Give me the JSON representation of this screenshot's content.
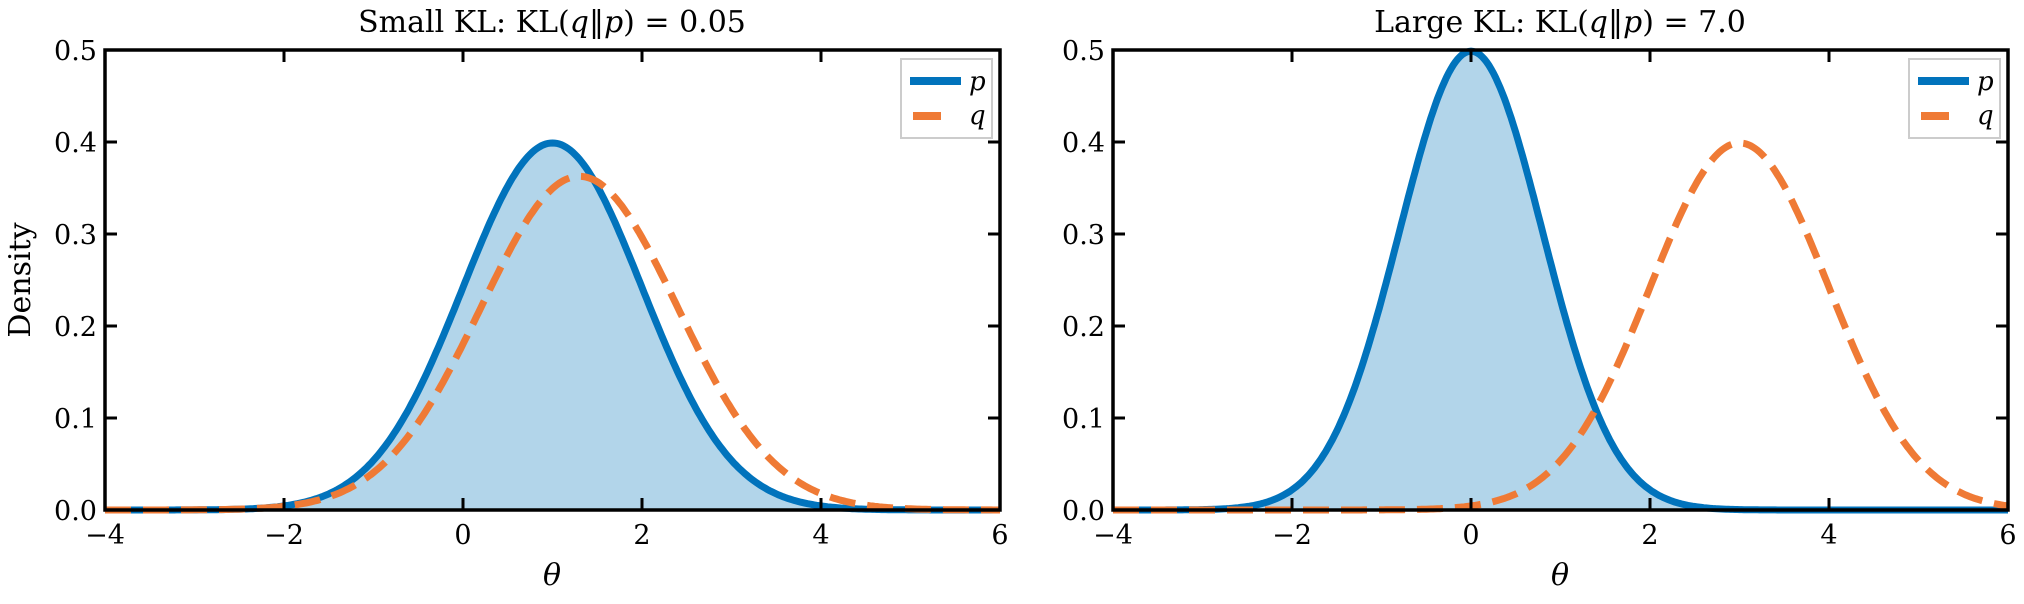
{
  "figure": {
    "ylabel": "Density",
    "colors": {
      "p": "#0173BC",
      "q": "#EF7A35",
      "p_fill": "#B2D5EA",
      "axis": "#000000",
      "legend_border": "#CCCCCC"
    }
  },
  "chart_data": [
    {
      "type": "line",
      "title": "Small KL: KL(q‖p) = 0.05",
      "title_parts": {
        "prefix": "Small KL: KL(",
        "q": "q",
        "sep": "‖",
        "p": "p",
        "suffix": ") = 0.05"
      },
      "xlabel": "θ",
      "ylabel": "Density",
      "xlim": [
        -4,
        6
      ],
      "ylim": [
        0,
        0.5
      ],
      "xticks": [
        -4,
        -2,
        0,
        2,
        4,
        6
      ],
      "xtick_labels": [
        "−4",
        "−2",
        "0",
        "2",
        "4",
        "6"
      ],
      "yticks": [
        0.0,
        0.1,
        0.2,
        0.3,
        0.4,
        0.5
      ],
      "ytick_labels": [
        "0.0",
        "0.1",
        "0.2",
        "0.3",
        "0.4",
        "0.5"
      ],
      "grid": false,
      "legend_position": "upper right",
      "legend": [
        "p",
        "q"
      ],
      "series": [
        {
          "name": "p",
          "distribution": "normal",
          "mean": 1.0,
          "std": 1.0,
          "style": "solid",
          "filled": true,
          "peak": 0.399
        },
        {
          "name": "q",
          "distribution": "normal",
          "mean": 1.3,
          "std": 1.1,
          "style": "dashed",
          "filled": false,
          "peak": 0.363
        }
      ],
      "kl_q_p": 0.05
    },
    {
      "type": "line",
      "title": "Large KL: KL(q‖p) = 7.0",
      "title_parts": {
        "prefix": "Large KL: KL(",
        "q": "q",
        "sep": "‖",
        "p": "p",
        "suffix": ") = 7.0"
      },
      "xlabel": "θ",
      "ylabel": "",
      "xlim": [
        -4,
        6
      ],
      "ylim": [
        0,
        0.5
      ],
      "xticks": [
        -4,
        -2,
        0,
        2,
        4,
        6
      ],
      "xtick_labels": [
        "−4",
        "−2",
        "0",
        "2",
        "4",
        "6"
      ],
      "yticks": [
        0.0,
        0.1,
        0.2,
        0.3,
        0.4,
        0.5
      ],
      "ytick_labels": [
        "0.0",
        "0.1",
        "0.2",
        "0.3",
        "0.4",
        "0.5"
      ],
      "grid": false,
      "legend_position": "upper right",
      "legend": [
        "p",
        "q"
      ],
      "series": [
        {
          "name": "p",
          "distribution": "normal",
          "mean": 0.0,
          "std": 0.8,
          "style": "solid",
          "filled": true,
          "peak": 0.499
        },
        {
          "name": "q",
          "distribution": "normal",
          "mean": 3.0,
          "std": 1.0,
          "style": "dashed",
          "filled": false,
          "peak": 0.399
        }
      ],
      "kl_q_p": 7.0
    }
  ]
}
